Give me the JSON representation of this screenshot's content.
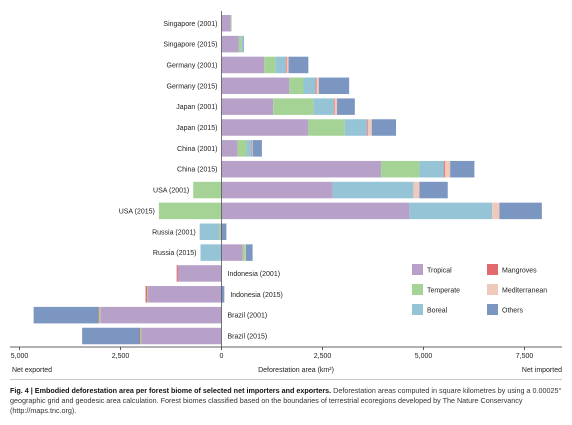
{
  "chart_data": {
    "type": "bar",
    "orientation": "horizontal",
    "stacked": true,
    "categories": [
      "Singapore (2001)",
      "Singapore (2015)",
      "Germany (2001)",
      "Germany (2015)",
      "Japan (2001)",
      "Japan (2015)",
      "China (2001)",
      "China (2015)",
      "USA (2001)",
      "USA (2015)",
      "Russia (2001)",
      "Russia (2015)",
      "Indonesia (2001)",
      "Indonesia (2015)",
      "Brazil (2001)",
      "Brazil (2015)"
    ],
    "label_side": [
      "left",
      "left",
      "left",
      "left",
      "left",
      "left",
      "left",
      "left",
      "left",
      "left",
      "left",
      "left",
      "right",
      "right",
      "right",
      "right"
    ],
    "series": [
      {
        "name": "Tropical",
        "color": "#b7a1c9",
        "values": [
          230,
          430,
          1060,
          1680,
          1280,
          2150,
          400,
          3950,
          2750,
          4650,
          -30,
          520,
          -1080,
          -1820,
          -3000,
          -1980
        ]
      },
      {
        "name": "Temperate",
        "color": "#a5d395",
        "values": [
          20,
          70,
          280,
          350,
          1000,
          900,
          220,
          950,
          -700,
          -1550,
          -30,
          60,
          0,
          -20,
          -30,
          -30
        ]
      },
      {
        "name": "Boreal",
        "color": "#94c4d6",
        "values": [
          0,
          30,
          250,
          300,
          500,
          550,
          120,
          600,
          2000,
          2050,
          -480,
          -520,
          0,
          0,
          0,
          0
        ]
      },
      {
        "name": "Mangroves",
        "color": "#e06a6d",
        "values": [
          0,
          0,
          20,
          20,
          20,
          20,
          10,
          30,
          0,
          0,
          0,
          0,
          -30,
          -40,
          -20,
          -20
        ]
      },
      {
        "name": "Mediterranean",
        "color": "#f0c9bd",
        "values": [
          0,
          0,
          50,
          60,
          60,
          100,
          20,
          130,
          150,
          180,
          0,
          20,
          0,
          0,
          0,
          0
        ]
      },
      {
        "name": "Others",
        "color": "#7b96c0",
        "values": [
          0,
          20,
          490,
          750,
          440,
          600,
          230,
          600,
          700,
          1050,
          120,
          170,
          0,
          70,
          -1600,
          -1420
        ]
      }
    ],
    "xlim": [
      -5000,
      8600
    ],
    "xticks": [
      -5000,
      -2500,
      0,
      2500,
      5000,
      7500
    ],
    "xtick_labels": [
      "5,000",
      "2,500",
      "0",
      "2,500",
      "5,000",
      "7,500"
    ],
    "xlabel": "Deforestation area (km²)",
    "left_note": "Net exported",
    "right_note": "Net imported",
    "legend": {
      "placement": "bottom-right",
      "items": [
        "Tropical",
        "Mangroves",
        "Temperate",
        "Mediterranean",
        "Boreal",
        "Others"
      ]
    },
    "grid": false
  },
  "caption": {
    "lead": "Fig. 4 | Embodied deforestation area per forest biome of selected net importers and exporters.",
    "body": " Deforestation areas computed in square kilometres by using a 0.00025° geographic grid and geodesic area calculation. Forest biomes classified based on the boundaries of terrestrial ecoregions developed by The Nature Conservancy (http://maps.tnc.org)."
  }
}
